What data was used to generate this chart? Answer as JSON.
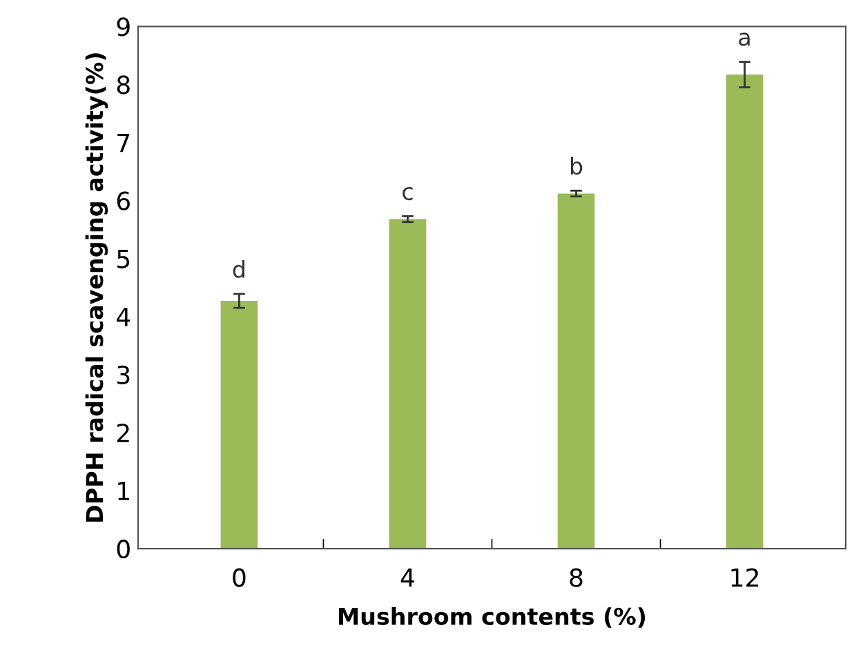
{
  "chart_data": {
    "type": "bar",
    "xlabel": "Mushroom contents (%)",
    "ylabel": "DPPH radical scavenging activity(%)",
    "categories": [
      "0",
      "4",
      "8",
      "12"
    ],
    "values": [
      4.27,
      5.68,
      6.12,
      8.17
    ],
    "errors": [
      0.12,
      0.05,
      0.05,
      0.22
    ],
    "color": "#9bbb59",
    "ylim": [
      0,
      9
    ],
    "yticks": [
      0,
      1,
      2,
      3,
      4,
      5,
      6,
      7,
      8,
      9
    ],
    "grid": false,
    "legend": false,
    "annotations": [
      "d",
      "c",
      "b",
      "a"
    ]
  }
}
